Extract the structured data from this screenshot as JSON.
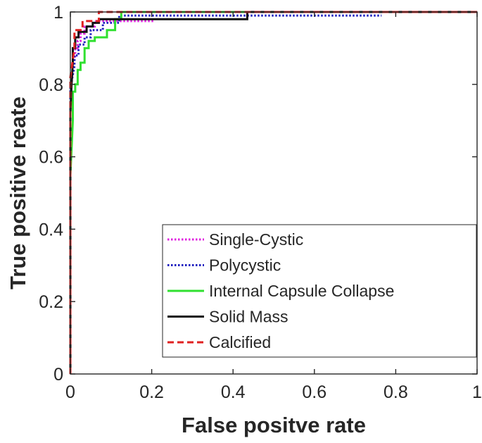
{
  "chart_data": {
    "type": "line",
    "title": "",
    "xlabel": "False positve rate",
    "ylabel": "True positive reate",
    "xlim": [
      0,
      1
    ],
    "ylim": [
      0,
      1
    ],
    "xticks": [
      "0",
      "0.2",
      "0.4",
      "0.6",
      "0.8",
      "1"
    ],
    "yticks": [
      "0",
      "0.2",
      "0.4",
      "0.6",
      "0.8",
      "1"
    ],
    "grid": false,
    "legend_position": "bottom-right",
    "series": [
      {
        "name": "Single-Cystic",
        "color": "#E020E0",
        "style": "dotted",
        "x": [
          0,
          0,
          0.003,
          0.006,
          0.009,
          0.012,
          0.012,
          0.018,
          0.018,
          0.025,
          0.025,
          0.035,
          0.035,
          0.06,
          0.06,
          0.205
        ],
        "y": [
          0,
          0.78,
          0.8,
          0.84,
          0.86,
          0.88,
          0.9,
          0.9,
          0.92,
          0.92,
          0.94,
          0.94,
          0.96,
          0.96,
          0.975,
          0.975
        ]
      },
      {
        "name": "Polycystic",
        "color": "#2020C0",
        "style": "dotted",
        "x": [
          0,
          0,
          0.005,
          0.01,
          0.01,
          0.02,
          0.02,
          0.035,
          0.035,
          0.05,
          0.05,
          0.08,
          0.08,
          0.12,
          0.12,
          0.765
        ],
        "y": [
          0,
          0.8,
          0.82,
          0.85,
          0.88,
          0.88,
          0.91,
          0.91,
          0.93,
          0.93,
          0.95,
          0.95,
          0.97,
          0.97,
          0.99,
          0.99
        ]
      },
      {
        "name": "Internal Capsule Collapse",
        "color": "#30E030",
        "style": "solid",
        "x": [
          0,
          0,
          0.003,
          0.006,
          0.006,
          0.012,
          0.012,
          0.018,
          0.018,
          0.025,
          0.025,
          0.035,
          0.035,
          0.045,
          0.045,
          0.06,
          0.06,
          0.09,
          0.09,
          0.11,
          0.11,
          0.125,
          0.125,
          1
        ],
        "y": [
          0,
          0.55,
          0.62,
          0.7,
          0.78,
          0.78,
          0.8,
          0.8,
          0.84,
          0.84,
          0.86,
          0.86,
          0.9,
          0.9,
          0.92,
          0.92,
          0.93,
          0.93,
          0.95,
          0.95,
          0.98,
          0.98,
          1,
          1
        ]
      },
      {
        "name": "Solid Mass",
        "color": "#111111",
        "style": "solid",
        "x": [
          0,
          0,
          0.003,
          0.006,
          0.006,
          0.012,
          0.012,
          0.02,
          0.02,
          0.04,
          0.04,
          0.055,
          0.055,
          0.07,
          0.07,
          0.435,
          0.435,
          1
        ],
        "y": [
          0,
          0.72,
          0.8,
          0.86,
          0.9,
          0.9,
          0.93,
          0.93,
          0.945,
          0.945,
          0.96,
          0.96,
          0.97,
          0.97,
          0.98,
          0.98,
          1,
          1
        ]
      },
      {
        "name": "Calcified",
        "color": "#E02020",
        "style": "dashed",
        "x": [
          0,
          0,
          0.005,
          0.01,
          0.01,
          0.03,
          0.03,
          0.07,
          0.07,
          1
        ],
        "y": [
          0,
          0.82,
          0.86,
          0.9,
          0.95,
          0.95,
          0.975,
          0.975,
          1,
          1
        ]
      }
    ]
  }
}
